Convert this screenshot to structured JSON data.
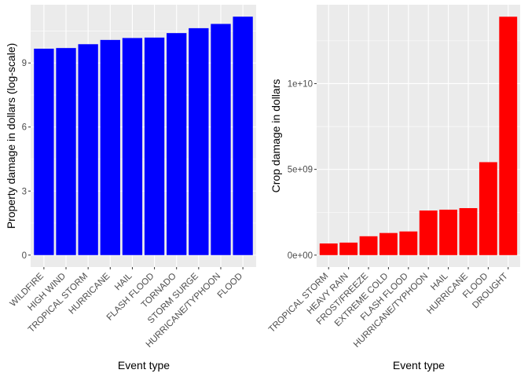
{
  "chart_data": [
    {
      "type": "bar",
      "categories": [
        "WILDFIRE",
        "HIGH WIND",
        "TROPICAL STORM",
        "HURRICANE",
        "HAIL",
        "FLASH FLOOD",
        "TORNADO",
        "STORM SURGE",
        "HURRICANE/TYPHOON",
        "FLOOD"
      ],
      "values": [
        9.67,
        9.7,
        9.88,
        10.08,
        10.17,
        10.19,
        10.4,
        10.63,
        10.83,
        11.17
      ],
      "xlabel": "Event type",
      "ylabel": "Property damage in dollars (log-scale)",
      "ylim": [
        -0.56,
        11.73
      ],
      "yticks": [
        0,
        3,
        6,
        9
      ],
      "ytick_labels": [
        "0",
        "3",
        "6",
        "9"
      ],
      "bar_color": "#0000FF",
      "panel_background": "#EBEBEB",
      "grid": true,
      "legend": "none"
    },
    {
      "type": "bar",
      "categories": [
        "TROPICAL STORM",
        "HEAVY RAIN",
        "FROST/FREEZE",
        "EXTREME COLD",
        "FLASH FLOOD",
        "HURRICANE/TYPHOON",
        "HAIL",
        "HURRICANE",
        "FLOOD",
        "DROUGHT"
      ],
      "values": [
        680000000,
        730000000,
        1100000000,
        1290000000,
        1380000000,
        2600000000,
        2650000000,
        2740000000,
        5420000000,
        13900000000
      ],
      "xlabel": "Event type",
      "ylabel": "Crop damage in dollars",
      "ylim": [
        -695000000,
        14600000000
      ],
      "yticks": [
        0,
        5000000000,
        10000000000
      ],
      "ytick_labels": [
        "0e+00",
        "5e+09",
        "1e+10"
      ],
      "bar_color": "#FF0000",
      "panel_background": "#EBEBEB",
      "grid": true,
      "legend": "none"
    }
  ]
}
